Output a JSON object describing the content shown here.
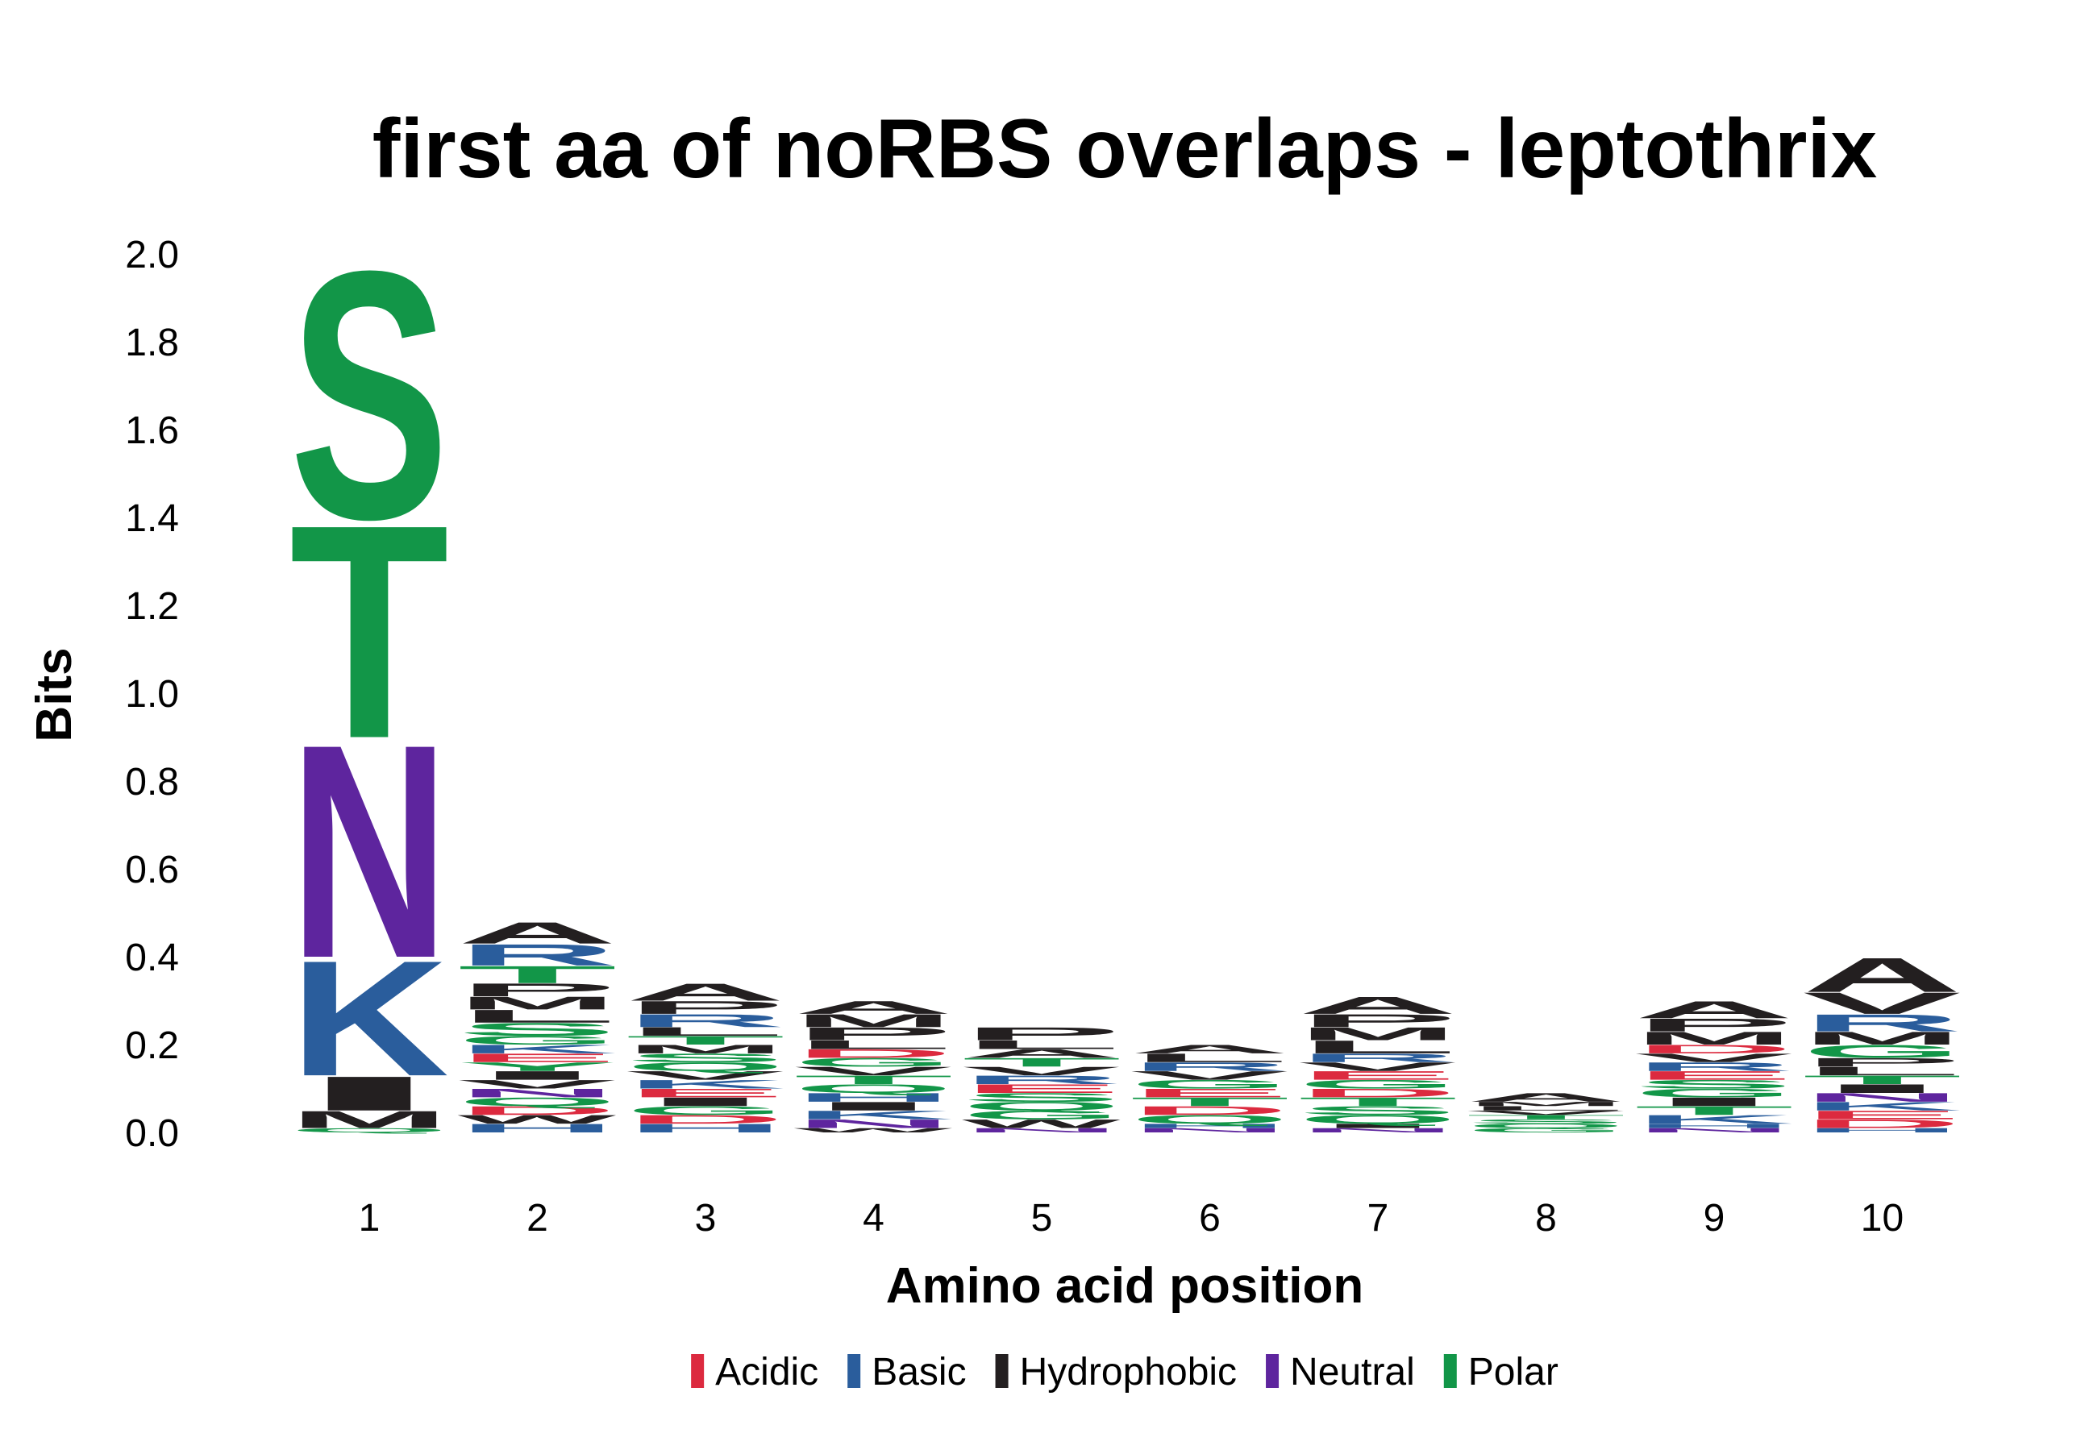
{
  "chart_data": {
    "type": "sequence-logo",
    "title": "first aa of noRBS overlaps - leptothrix",
    "xlabel": "Amino acid position",
    "ylabel": "Bits",
    "ylim": [
      0,
      2.0
    ],
    "yticks": [
      "0.0",
      "0.2",
      "0.4",
      "0.6",
      "0.8",
      "1.0",
      "1.2",
      "1.4",
      "1.6",
      "1.8",
      "2.0"
    ],
    "categories": [
      "1",
      "2",
      "3",
      "4",
      "5",
      "6",
      "7",
      "8",
      "9",
      "10"
    ],
    "color_scheme": {
      "Acidic": "#dc2a3f",
      "Basic": "#2a5d9c",
      "Hydrophobic": "#231f20",
      "Neutral": "#5e259e",
      "Polar": "#129648"
    },
    "legend": [
      "Acidic",
      "Basic",
      "Hydrophobic",
      "Neutral",
      "Polar"
    ],
    "positions": [
      {
        "position": "1",
        "stack": [
          {
            "aa": "Q",
            "bits": 0.01,
            "class": "Polar"
          },
          {
            "aa": "M",
            "bits": 0.04,
            "class": "Hydrophobic"
          },
          {
            "aa": "I",
            "bits": 0.08,
            "class": "Hydrophobic"
          },
          {
            "aa": "K",
            "bits": 0.27,
            "class": "Basic"
          },
          {
            "aa": "N",
            "bits": 0.5,
            "class": "Neutral"
          },
          {
            "aa": "T",
            "bits": 0.5,
            "class": "Polar"
          },
          {
            "aa": "S",
            "bits": 0.58,
            "class": "Polar"
          }
        ]
      },
      {
        "position": "2",
        "stack": [
          {
            "aa": "H",
            "bits": 0.02,
            "class": "Basic"
          },
          {
            "aa": "W",
            "bits": 0.02,
            "class": "Hydrophobic"
          },
          {
            "aa": "D",
            "bits": 0.02,
            "class": "Acidic"
          },
          {
            "aa": "Q",
            "bits": 0.02,
            "class": "Polar"
          },
          {
            "aa": "N",
            "bits": 0.02,
            "class": "Neutral"
          },
          {
            "aa": "V",
            "bits": 0.02,
            "class": "Hydrophobic"
          },
          {
            "aa": "I",
            "bits": 0.02,
            "class": "Hydrophobic"
          },
          {
            "aa": "Y",
            "bits": 0.02,
            "class": "Polar"
          },
          {
            "aa": "E",
            "bits": 0.02,
            "class": "Acidic"
          },
          {
            "aa": "K",
            "bits": 0.02,
            "class": "Basic"
          },
          {
            "aa": "G",
            "bits": 0.02,
            "class": "Polar"
          },
          {
            "aa": "S",
            "bits": 0.03,
            "class": "Polar"
          },
          {
            "aa": "L",
            "bits": 0.03,
            "class": "Hydrophobic"
          },
          {
            "aa": "M",
            "bits": 0.03,
            "class": "Hydrophobic"
          },
          {
            "aa": "P",
            "bits": 0.03,
            "class": "Hydrophobic"
          },
          {
            "aa": "T",
            "bits": 0.04,
            "class": "Polar"
          },
          {
            "aa": "R",
            "bits": 0.05,
            "class": "Basic"
          },
          {
            "aa": "A",
            "bits": 0.05,
            "class": "Hydrophobic"
          }
        ]
      },
      {
        "position": "3",
        "stack": [
          {
            "aa": "H",
            "bits": 0.02,
            "class": "Basic"
          },
          {
            "aa": "D",
            "bits": 0.02,
            "class": "Acidic"
          },
          {
            "aa": "G",
            "bits": 0.02,
            "class": "Polar"
          },
          {
            "aa": "I",
            "bits": 0.02,
            "class": "Hydrophobic"
          },
          {
            "aa": "E",
            "bits": 0.02,
            "class": "Acidic"
          },
          {
            "aa": "K",
            "bits": 0.02,
            "class": "Basic"
          },
          {
            "aa": "V",
            "bits": 0.02,
            "class": "Hydrophobic"
          },
          {
            "aa": "Q",
            "bits": 0.02,
            "class": "Polar"
          },
          {
            "aa": "S",
            "bits": 0.02,
            "class": "Polar"
          },
          {
            "aa": "M",
            "bits": 0.02,
            "class": "Hydrophobic"
          },
          {
            "aa": "T",
            "bits": 0.02,
            "class": "Polar"
          },
          {
            "aa": "L",
            "bits": 0.02,
            "class": "Hydrophobic"
          },
          {
            "aa": "R",
            "bits": 0.03,
            "class": "Basic"
          },
          {
            "aa": "P",
            "bits": 0.03,
            "class": "Hydrophobic"
          },
          {
            "aa": "A",
            "bits": 0.04,
            "class": "Hydrophobic"
          }
        ]
      },
      {
        "position": "4",
        "stack": [
          {
            "aa": "W",
            "bits": 0.01,
            "class": "Hydrophobic"
          },
          {
            "aa": "N",
            "bits": 0.02,
            "class": "Neutral"
          },
          {
            "aa": "K",
            "bits": 0.02,
            "class": "Basic"
          },
          {
            "aa": "I",
            "bits": 0.02,
            "class": "Hydrophobic"
          },
          {
            "aa": "H",
            "bits": 0.02,
            "class": "Basic"
          },
          {
            "aa": "Q",
            "bits": 0.02,
            "class": "Polar"
          },
          {
            "aa": "T",
            "bits": 0.02,
            "class": "Polar"
          },
          {
            "aa": "V",
            "bits": 0.02,
            "class": "Hydrophobic"
          },
          {
            "aa": "G",
            "bits": 0.02,
            "class": "Polar"
          },
          {
            "aa": "D",
            "bits": 0.02,
            "class": "Acidic"
          },
          {
            "aa": "L",
            "bits": 0.02,
            "class": "Hydrophobic"
          },
          {
            "aa": "P",
            "bits": 0.03,
            "class": "Hydrophobic"
          },
          {
            "aa": "M",
            "bits": 0.03,
            "class": "Hydrophobic"
          },
          {
            "aa": "A",
            "bits": 0.03,
            "class": "Hydrophobic"
          }
        ]
      },
      {
        "position": "5",
        "stack": [
          {
            "aa": "N",
            "bits": 0.01,
            "class": "Neutral"
          },
          {
            "aa": "W",
            "bits": 0.02,
            "class": "Hydrophobic"
          },
          {
            "aa": "G",
            "bits": 0.02,
            "class": "Polar"
          },
          {
            "aa": "Q",
            "bits": 0.02,
            "class": "Polar"
          },
          {
            "aa": "S",
            "bits": 0.02,
            "class": "Polar"
          },
          {
            "aa": "E",
            "bits": 0.02,
            "class": "Acidic"
          },
          {
            "aa": "R",
            "bits": 0.02,
            "class": "Basic"
          },
          {
            "aa": "V",
            "bits": 0.02,
            "class": "Hydrophobic"
          },
          {
            "aa": "T",
            "bits": 0.02,
            "class": "Polar"
          },
          {
            "aa": "A",
            "bits": 0.02,
            "class": "Hydrophobic"
          },
          {
            "aa": "L",
            "bits": 0.02,
            "class": "Hydrophobic"
          },
          {
            "aa": "P",
            "bits": 0.03,
            "class": "Hydrophobic"
          }
        ]
      },
      {
        "position": "6",
        "stack": [
          {
            "aa": "N",
            "bits": 0.01,
            "class": "Neutral"
          },
          {
            "aa": "H",
            "bits": 0.01,
            "class": "Basic"
          },
          {
            "aa": "Q",
            "bits": 0.02,
            "class": "Polar"
          },
          {
            "aa": "D",
            "bits": 0.02,
            "class": "Acidic"
          },
          {
            "aa": "T",
            "bits": 0.02,
            "class": "Polar"
          },
          {
            "aa": "E",
            "bits": 0.02,
            "class": "Acidic"
          },
          {
            "aa": "G",
            "bits": 0.02,
            "class": "Polar"
          },
          {
            "aa": "V",
            "bits": 0.02,
            "class": "Hydrophobic"
          },
          {
            "aa": "R",
            "bits": 0.02,
            "class": "Basic"
          },
          {
            "aa": "L",
            "bits": 0.02,
            "class": "Hydrophobic"
          },
          {
            "aa": "A",
            "bits": 0.02,
            "class": "Hydrophobic"
          }
        ]
      },
      {
        "position": "7",
        "stack": [
          {
            "aa": "N",
            "bits": 0.01,
            "class": "Neutral"
          },
          {
            "aa": "I",
            "bits": 0.01,
            "class": "Hydrophobic"
          },
          {
            "aa": "Q",
            "bits": 0.02,
            "class": "Polar"
          },
          {
            "aa": "S",
            "bits": 0.02,
            "class": "Polar"
          },
          {
            "aa": "T",
            "bits": 0.02,
            "class": "Polar"
          },
          {
            "aa": "D",
            "bits": 0.02,
            "class": "Acidic"
          },
          {
            "aa": "G",
            "bits": 0.02,
            "class": "Polar"
          },
          {
            "aa": "E",
            "bits": 0.02,
            "class": "Acidic"
          },
          {
            "aa": "V",
            "bits": 0.02,
            "class": "Hydrophobic"
          },
          {
            "aa": "R",
            "bits": 0.02,
            "class": "Basic"
          },
          {
            "aa": "L",
            "bits": 0.03,
            "class": "Hydrophobic"
          },
          {
            "aa": "M",
            "bits": 0.03,
            "class": "Hydrophobic"
          },
          {
            "aa": "P",
            "bits": 0.03,
            "class": "Hydrophobic"
          },
          {
            "aa": "A",
            "bits": 0.04,
            "class": "Hydrophobic"
          }
        ]
      },
      {
        "position": "8",
        "stack": [
          {
            "aa": "G",
            "bits": 0.01,
            "class": "Polar"
          },
          {
            "aa": "Q",
            "bits": 0.01,
            "class": "Polar"
          },
          {
            "aa": "S",
            "bits": 0.01,
            "class": "Polar"
          },
          {
            "aa": "T",
            "bits": 0.01,
            "class": "Polar"
          },
          {
            "aa": "V",
            "bits": 0.01,
            "class": "Hydrophobic"
          },
          {
            "aa": "L",
            "bits": 0.01,
            "class": "Hydrophobic"
          },
          {
            "aa": "M",
            "bits": 0.01,
            "class": "Hydrophobic"
          },
          {
            "aa": "A",
            "bits": 0.02,
            "class": "Hydrophobic"
          }
        ]
      },
      {
        "position": "9",
        "stack": [
          {
            "aa": "N",
            "bits": 0.01,
            "class": "Neutral"
          },
          {
            "aa": "H",
            "bits": 0.01,
            "class": "Basic"
          },
          {
            "aa": "K",
            "bits": 0.02,
            "class": "Basic"
          },
          {
            "aa": "T",
            "bits": 0.02,
            "class": "Polar"
          },
          {
            "aa": "I",
            "bits": 0.02,
            "class": "Hydrophobic"
          },
          {
            "aa": "G",
            "bits": 0.02,
            "class": "Polar"
          },
          {
            "aa": "S",
            "bits": 0.02,
            "class": "Polar"
          },
          {
            "aa": "E",
            "bits": 0.02,
            "class": "Acidic"
          },
          {
            "aa": "R",
            "bits": 0.02,
            "class": "Basic"
          },
          {
            "aa": "V",
            "bits": 0.02,
            "class": "Hydrophobic"
          },
          {
            "aa": "D",
            "bits": 0.02,
            "class": "Acidic"
          },
          {
            "aa": "M",
            "bits": 0.03,
            "class": "Hydrophobic"
          },
          {
            "aa": "P",
            "bits": 0.03,
            "class": "Hydrophobic"
          },
          {
            "aa": "A",
            "bits": 0.04,
            "class": "Hydrophobic"
          }
        ]
      },
      {
        "position": "10",
        "stack": [
          {
            "aa": "H",
            "bits": 0.01,
            "class": "Basic"
          },
          {
            "aa": "D",
            "bits": 0.02,
            "class": "Acidic"
          },
          {
            "aa": "E",
            "bits": 0.02,
            "class": "Acidic"
          },
          {
            "aa": "K",
            "bits": 0.02,
            "class": "Basic"
          },
          {
            "aa": "N",
            "bits": 0.02,
            "class": "Neutral"
          },
          {
            "aa": "I",
            "bits": 0.02,
            "class": "Hydrophobic"
          },
          {
            "aa": "T",
            "bits": 0.02,
            "class": "Polar"
          },
          {
            "aa": "L",
            "bits": 0.02,
            "class": "Hydrophobic"
          },
          {
            "aa": "P",
            "bits": 0.02,
            "class": "Hydrophobic"
          },
          {
            "aa": "G",
            "bits": 0.03,
            "class": "Polar"
          },
          {
            "aa": "M",
            "bits": 0.03,
            "class": "Hydrophobic"
          },
          {
            "aa": "R",
            "bits": 0.04,
            "class": "Basic"
          },
          {
            "aa": "V",
            "bits": 0.05,
            "class": "Hydrophobic"
          },
          {
            "aa": "A",
            "bits": 0.08,
            "class": "Hydrophobic"
          }
        ]
      }
    ]
  }
}
